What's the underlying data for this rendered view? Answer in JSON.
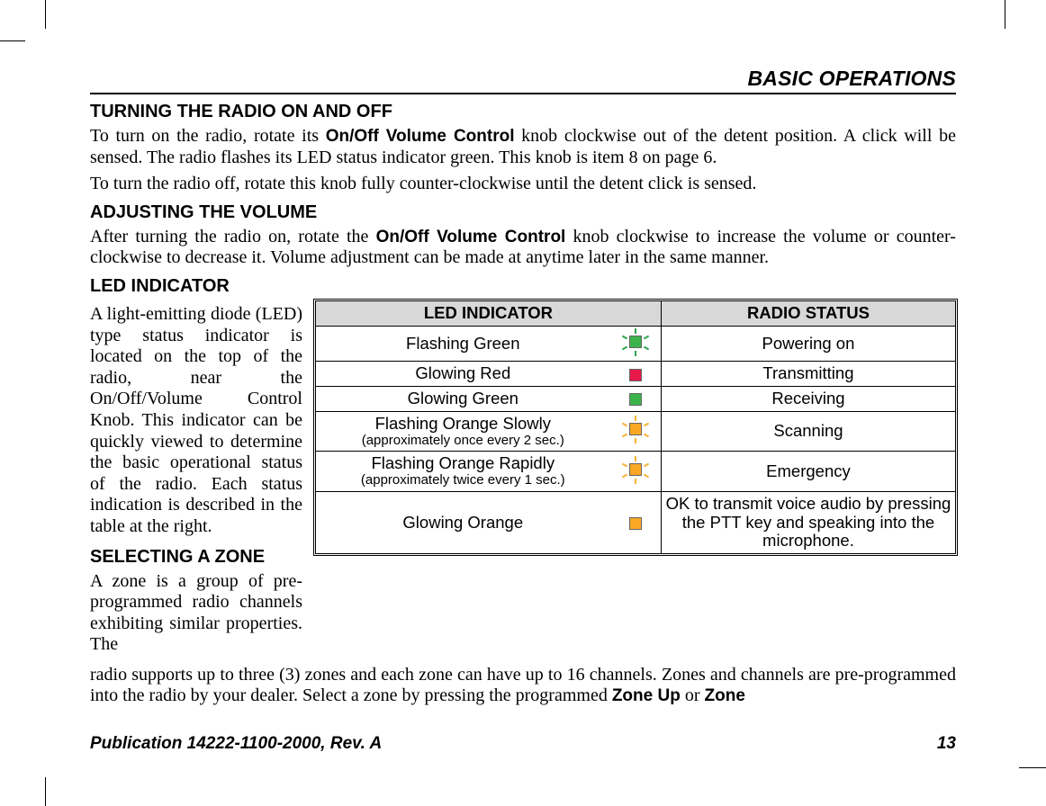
{
  "header": {
    "section_title": "BASIC OPERATIONS"
  },
  "h1": "TURNING THE RADIO ON AND OFF",
  "p1a": "To turn on the radio, rotate its ",
  "p1b": "On/Off Volume Control",
  "p1c": " knob clockwise out of the detent position. A click will be sensed. The radio flashes its LED status indicator green. This knob is item 8 on page 6.",
  "p2": "To turn the radio off, rotate this knob fully counter-clockwise until the detent click is sensed.",
  "h2": "ADJUSTING THE VOLUME",
  "p3a": "After turning the radio on, rotate the ",
  "p3b": "On/Off Volume Control",
  "p3c": " knob clockwise to increase the volume or counter-clockwise to decrease it. Volume adjustment can be made at anytime later in the same manner.",
  "h3": "LED INDICATOR",
  "p4": "A light-emitting diode (LED) type status indicator is located on the top of the radio, near the On/Off/Volume Control Knob. This indicator can be quickly viewed to determine the basic operational status of the radio. Each status indication is described in the table at the right.",
  "h4": "SELECTING A ZONE",
  "p5": "A zone is a group of pre-programmed radio channels exhibiting similar properties. The",
  "p6a": "radio supports up to three (3) zones and each zone can have up to 16 channels. Zones and channels are pre-programmed into the radio by your dealer. Select a zone by pressing the programmed ",
  "p6b": "Zone Up",
  "p6c": " or ",
  "p6d": "Zone",
  "table": {
    "headers": {
      "indicator": "LED INDICATOR",
      "status": "RADIO STATUS"
    },
    "header_bg": "#d8d8d8",
    "rows": [
      {
        "ind": "Flashing Green",
        "sub": "",
        "color": "#3cb44b",
        "flash": true,
        "ray_color": "g",
        "status": "Powering on"
      },
      {
        "ind": "Glowing Red",
        "sub": "",
        "color": "#e6194b",
        "flash": false,
        "status": "Transmitting"
      },
      {
        "ind": "Glowing Green",
        "sub": "",
        "color": "#3cb44b",
        "flash": false,
        "status": "Receiving"
      },
      {
        "ind": "Flashing Orange Slowly",
        "sub": "(approximately once every 2 sec.)",
        "color": "#f9a826",
        "flash": true,
        "ray_color": "",
        "status": "Scanning"
      },
      {
        "ind": "Flashing Orange Rapidly",
        "sub": "(approximately twice every 1 sec.)",
        "color": "#f9a826",
        "flash": true,
        "ray_color": "",
        "status": "Emergency"
      },
      {
        "ind": "Glowing Orange",
        "sub": "",
        "color": "#f9a826",
        "flash": false,
        "status": "OK to transmit voice audio by pressing the PTT key and speaking into the microphone."
      }
    ]
  },
  "footer": {
    "pub": "Publication 14222-1100-2000, Rev. A",
    "page": "13"
  }
}
